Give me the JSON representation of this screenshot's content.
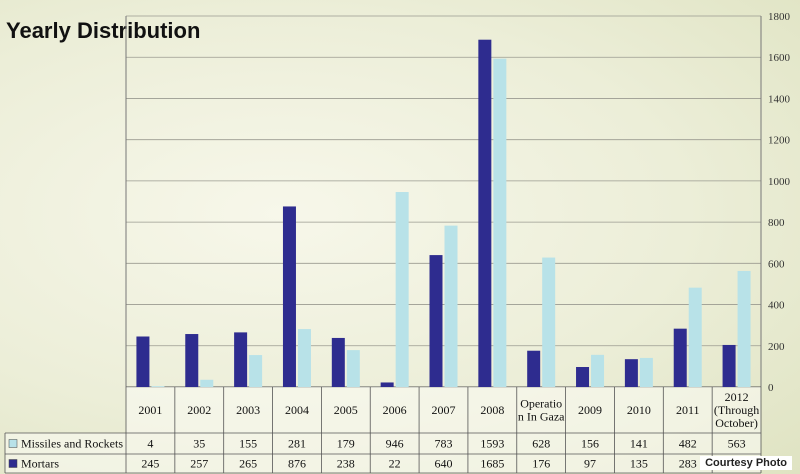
{
  "page": {
    "title": "Yearly Distribution",
    "credit": "Courtesy Photo"
  },
  "chart_data": {
    "type": "bar",
    "title": "Yearly Distribution",
    "ylim": [
      0,
      1800
    ],
    "yticks": [
      "0",
      "200",
      "400",
      "600",
      "800",
      "1000",
      "1200",
      "1400",
      "1600",
      "1800"
    ],
    "grid": true,
    "categories": [
      [
        "2001"
      ],
      [
        "2002"
      ],
      [
        "2003"
      ],
      [
        "2004"
      ],
      [
        "2005"
      ],
      [
        "2006"
      ],
      [
        "2007"
      ],
      [
        "2008"
      ],
      [
        "Operatio",
        "n In Gaza"
      ],
      [
        "2009"
      ],
      [
        "2010"
      ],
      [
        "2011"
      ],
      [
        "2012",
        "(Through",
        "October)"
      ]
    ],
    "series": [
      {
        "name": "Missiles and Rockets",
        "color": "#b8e2e8",
        "values": [
          4,
          35,
          155,
          281,
          179,
          946,
          783,
          1593,
          628,
          156,
          141,
          482,
          563
        ]
      },
      {
        "name": "Mortars",
        "color": "#2e2c8f",
        "values": [
          245,
          257,
          265,
          876,
          238,
          22,
          640,
          1685,
          176,
          97,
          135,
          283,
          204
        ]
      }
    ]
  }
}
